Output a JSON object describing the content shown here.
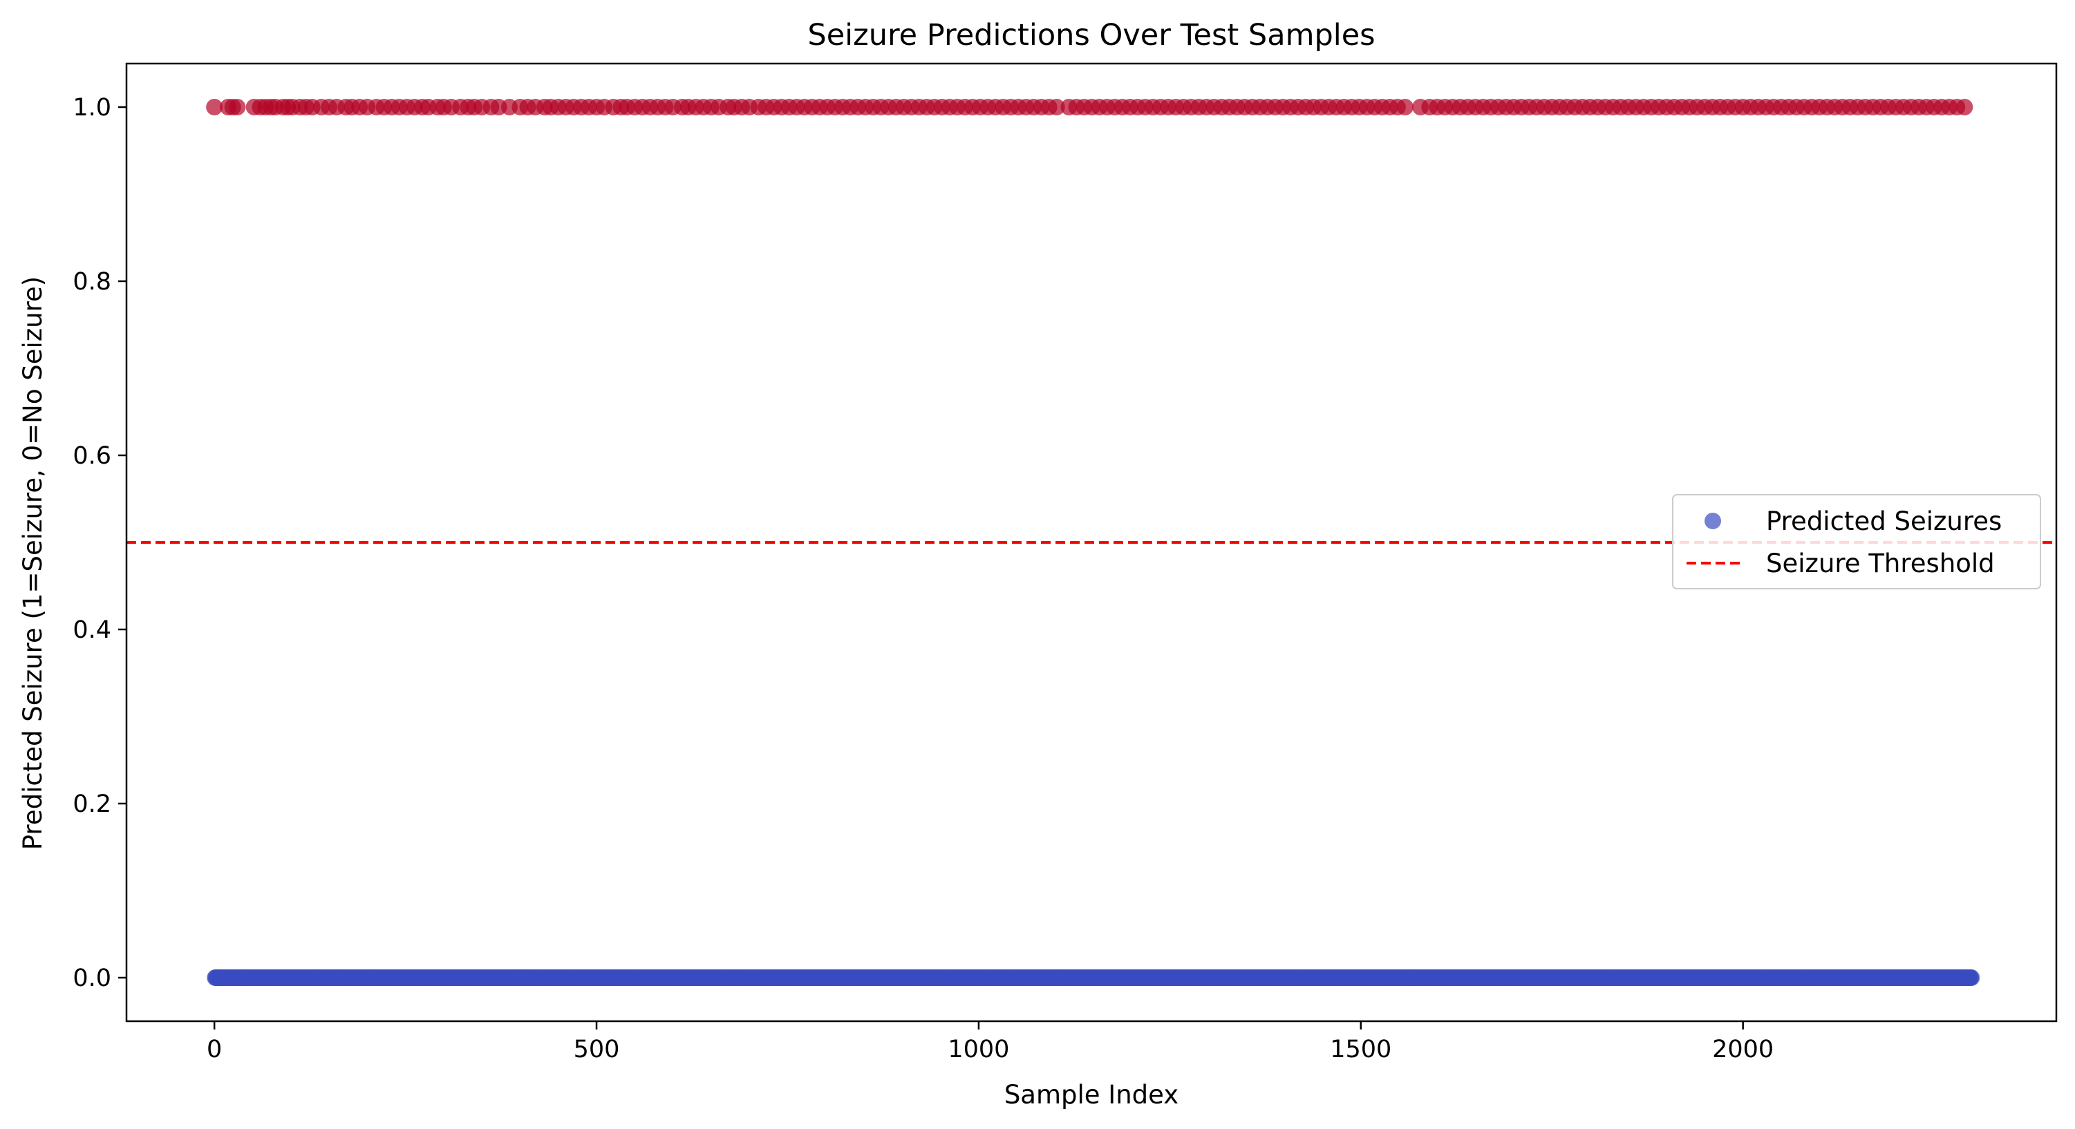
{
  "chart_data": {
    "type": "scatter",
    "title": "Seizure Predictions Over Test Samples",
    "xlabel": "Sample Index",
    "ylabel": "Predicted Seizure (1=Seizure, 0=No Seizure)",
    "xlim": [
      -115,
      2410
    ],
    "ylim": [
      -0.05,
      1.05
    ],
    "xticks": [
      0,
      500,
      1000,
      1500,
      2000
    ],
    "xtick_labels": [
      "0",
      "500",
      "1000",
      "1500",
      "2000"
    ],
    "yticks": [
      0.0,
      0.2,
      0.4,
      0.6,
      0.8,
      1.0
    ],
    "ytick_labels": [
      "0.0",
      "0.2",
      "0.4",
      "0.6",
      "0.8",
      "1.0"
    ],
    "grid": false,
    "legend_position": "center-right",
    "series": [
      {
        "name": "Predicted Seizures",
        "kind": "scatter",
        "color_no_seizure": "#3b4cc0",
        "color_seizure": "#b40426",
        "alpha": 0.7,
        "x_range": [
          0,
          2299
        ],
        "no_seizure_y": 0,
        "seizure_y": 1,
        "seizure_indices": [
          0,
          18,
          24,
          30,
          52,
          60,
          67,
          74,
          80,
          90,
          96,
          102,
          112,
          120,
          128,
          140,
          150,
          160,
          172,
          180,
          190,
          200,
          212,
          222,
          232,
          242,
          252,
          262,
          272,
          280,
          292,
          300,
          310,
          322,
          332,
          340,
          350,
          362,
          372,
          386,
          400,
          410,
          420,
          432,
          440,
          450,
          460,
          470,
          480,
          490,
          500,
          510,
          522,
          532,
          540,
          550,
          560,
          570,
          580,
          590,
          600,
          612,
          620,
          630,
          640,
          650,
          660,
          672,
          680,
          690,
          700,
          712,
          722,
          732,
          742,
          752,
          762,
          772,
          782,
          792,
          802,
          812,
          822,
          832,
          842,
          852,
          862,
          872,
          882,
          892,
          902,
          912,
          922,
          932,
          942,
          952,
          962,
          972,
          982,
          992,
          1002,
          1012,
          1022,
          1032,
          1042,
          1052,
          1062,
          1072,
          1082,
          1092,
          1102,
          1118,
          1128,
          1138,
          1148,
          1158,
          1168,
          1178,
          1188,
          1198,
          1208,
          1218,
          1228,
          1238,
          1248,
          1258,
          1268,
          1278,
          1288,
          1298,
          1308,
          1318,
          1328,
          1338,
          1348,
          1358,
          1368,
          1378,
          1388,
          1398,
          1408,
          1418,
          1428,
          1438,
          1448,
          1458,
          1468,
          1478,
          1488,
          1498,
          1508,
          1518,
          1528,
          1538,
          1548,
          1558,
          1578,
          1590,
          1600,
          1610,
          1620,
          1630,
          1640,
          1650,
          1660,
          1670,
          1680,
          1690,
          1700,
          1710,
          1720,
          1730,
          1740,
          1750,
          1760,
          1770,
          1780,
          1790,
          1800,
          1810,
          1820,
          1830,
          1840,
          1850,
          1860,
          1870,
          1880,
          1890,
          1900,
          1910,
          1920,
          1930,
          1940,
          1950,
          1960,
          1970,
          1980,
          1990,
          2000,
          2010,
          2020,
          2030,
          2040,
          2050,
          2060,
          2070,
          2080,
          2090,
          2100,
          2110,
          2120,
          2130,
          2140,
          2150,
          2160,
          2170,
          2180,
          2190,
          2200,
          2210,
          2220,
          2230,
          2240,
          2250,
          2260,
          2270,
          2280,
          2290
        ]
      },
      {
        "name": "Seizure Threshold",
        "kind": "hline",
        "y": 0.5,
        "color": "#ff0000",
        "linestyle": "dashed"
      }
    ]
  }
}
